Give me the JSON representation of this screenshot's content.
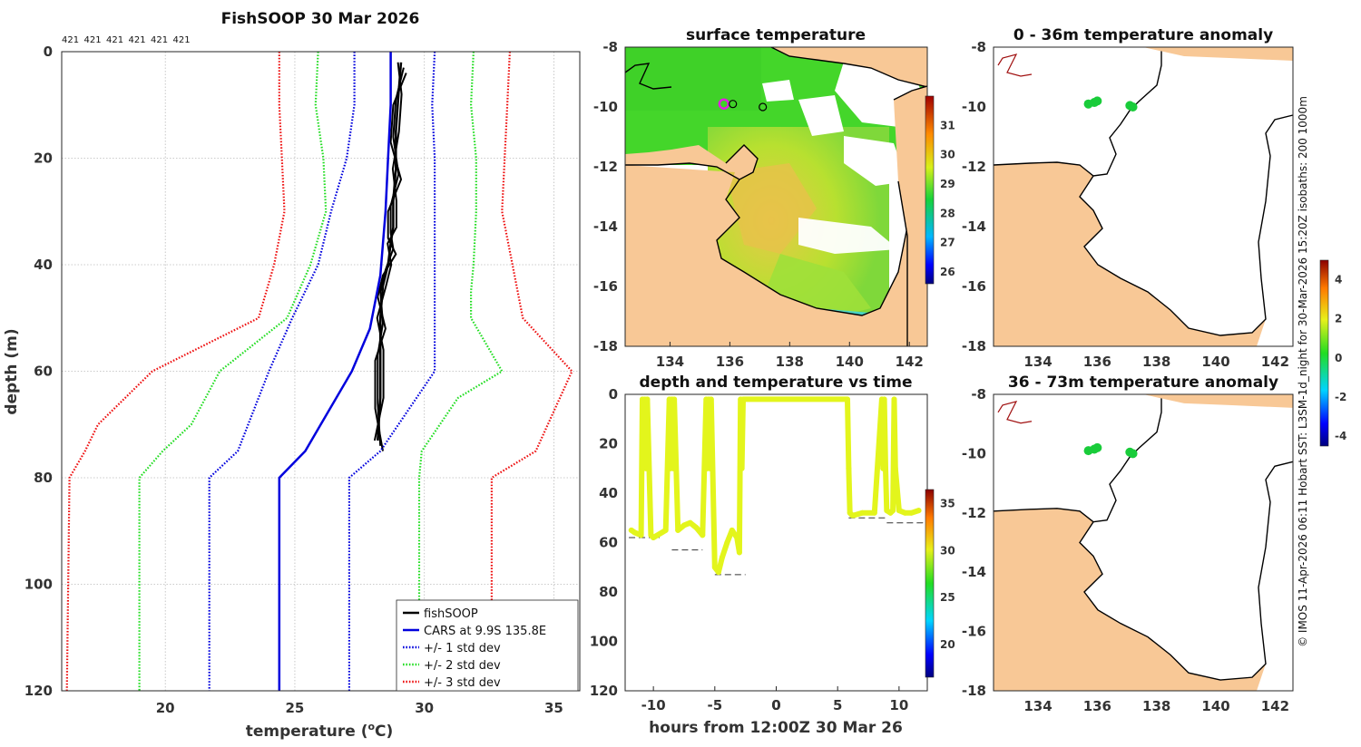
{
  "chart_data": [
    {
      "type": "line",
      "title": "FishSOOP 30 Mar 2026",
      "xlabel": "temperature (°C)",
      "ylabel": "depth (m)",
      "xlim": [
        16,
        36
      ],
      "ylim": [
        120,
        0
      ],
      "xticks": [
        "20",
        "25",
        "30",
        "35"
      ],
      "yticks": [
        "0",
        "20",
        "40",
        "60",
        "80",
        "100",
        "120"
      ],
      "top_labels": [
        "421",
        "421",
        "421",
        "421",
        "421",
        "421"
      ],
      "series": [
        {
          "name": "fishSOOP",
          "color": "#000000",
          "style": "solid",
          "x": [
            29.1,
            29.0,
            28.9,
            28.9,
            28.8,
            28.8,
            28.7,
            28.6,
            28.4,
            28.3,
            28.3,
            28.3,
            28.2
          ],
          "y": [
            2,
            8,
            15,
            22,
            28,
            33,
            36,
            40,
            44,
            50,
            56,
            65,
            73
          ]
        },
        {
          "name": "CARS at 9.9S 135.8E",
          "color": "#0000dd",
          "style": "solid",
          "x": [
            28.7,
            28.7,
            28.6,
            28.5,
            28.3,
            27.9,
            27.2,
            26.0,
            25.4,
            24.4,
            24.4
          ],
          "y": [
            0,
            10,
            20,
            30,
            42,
            52,
            60,
            70,
            75,
            80,
            120
          ]
        },
        {
          "name": "+/- 1 std dev",
          "color": "#0000dd",
          "style": "dotted",
          "x": [
            27.3,
            27.3,
            27.0,
            26.4,
            25.9,
            24.9,
            24.0,
            22.8,
            21.7,
            21.7
          ],
          "y": [
            0,
            10,
            20,
            30,
            40,
            50,
            60,
            75,
            80,
            120
          ]
        },
        {
          "name": "+/- 1 std dev (upper)",
          "color": "#0000dd",
          "style": "dotted",
          "x": [
            30.4,
            30.3,
            30.4,
            30.4,
            30.4,
            30.4,
            30.4,
            30.4,
            29.7,
            28.3,
            27.1,
            27.1
          ],
          "y": [
            0,
            10,
            20,
            30,
            40,
            45,
            50,
            60,
            65,
            75,
            80,
            120
          ]
        },
        {
          "name": "+/- 2 std dev",
          "color": "#22dd22",
          "style": "dotted",
          "x": [
            25.9,
            25.8,
            26.1,
            26.2,
            25.6,
            24.7,
            22.1,
            21.0,
            19.9,
            19.0,
            19.0
          ],
          "y": [
            0,
            10,
            20,
            30,
            40,
            50,
            60,
            70,
            75,
            80,
            120
          ]
        },
        {
          "name": "+/- 2 std dev (upper)",
          "color": "#22dd22",
          "style": "dotted",
          "x": [
            31.9,
            31.8,
            32.0,
            32.0,
            31.9,
            31.8,
            31.8,
            33.0,
            31.3,
            29.9,
            29.8,
            29.8
          ],
          "y": [
            0,
            10,
            20,
            30,
            40,
            45,
            50,
            60,
            65,
            75,
            80,
            120
          ]
        },
        {
          "name": "+/- 3 std dev",
          "color": "#ee1111",
          "style": "dotted",
          "x": [
            24.4,
            24.4,
            24.5,
            24.6,
            24.2,
            23.6,
            19.5,
            17.4,
            16.9,
            16.3,
            16.2
          ],
          "y": [
            0,
            10,
            20,
            30,
            40,
            50,
            60,
            70,
            75,
            80,
            120
          ]
        },
        {
          "name": "+/- 3 std dev (upper)",
          "color": "#ee1111",
          "style": "dotted",
          "x": [
            33.3,
            33.2,
            33.1,
            33.0,
            33.4,
            33.8,
            35.7,
            34.3,
            32.6,
            32.6
          ],
          "y": [
            0,
            10,
            20,
            30,
            40,
            50,
            60,
            75,
            80,
            120
          ]
        }
      ],
      "legend": [
        "fishSOOP",
        "CARS at 9.9S 135.8E",
        "+/- 1 std dev",
        "+/- 2 std dev",
        "+/- 3 std dev"
      ],
      "legend_position": "bottom-right"
    },
    {
      "type": "heatmap",
      "title": "surface temperature",
      "xticks": [
        "134",
        "136",
        "138",
        "140",
        "142"
      ],
      "yticks": [
        "-8",
        "-10",
        "-12",
        "-14",
        "-16",
        "-18"
      ],
      "xlim": [
        132.5,
        142.6
      ],
      "ylim": [
        -18,
        -8
      ],
      "colorbar_ticks": [
        "26",
        "27",
        "28",
        "29",
        "30",
        "31"
      ],
      "colorbar_range": [
        25.6,
        32
      ],
      "markers": [
        {
          "lon": 135.8,
          "lat": -9.9,
          "color": "#e01fe0"
        },
        {
          "lon": 136.1,
          "lat": -9.9,
          "color": "#000000"
        },
        {
          "lon": 137.1,
          "lat": -10.0,
          "color": "#000000"
        }
      ]
    },
    {
      "type": "scatter",
      "title": "depth and temperature vs time",
      "xlabel": "hours from 12:00Z 30 Mar 26",
      "xticks": [
        "-10",
        "-5",
        "0",
        "5",
        "10"
      ],
      "yticks": [
        "0",
        "20",
        "40",
        "60",
        "80",
        "100",
        "120"
      ],
      "xlim": [
        -12.3,
        12.3
      ],
      "ylim": [
        120,
        0
      ],
      "colorbar_ticks": [
        "20",
        "25",
        "30",
        "35"
      ],
      "colorbar_range": [
        16.5,
        36.5
      ],
      "point_color": "#e3f51c",
      "t": [
        -11.8,
        -11.5,
        -11.0,
        -10.9,
        -10.8,
        -10.7,
        -10.6,
        -10.5,
        -10.2,
        -10.0,
        -9.0,
        -8.7,
        -8.6,
        -8.5,
        -8.4,
        -8.3,
        -8.0,
        -7.5,
        -7.0,
        -6.5,
        -6.0,
        -5.7,
        -5.6,
        -5.5,
        -5.4,
        -5.3,
        -5.0,
        -4.7,
        -4.4,
        -4.0,
        -3.6,
        -3.2,
        -3.0,
        -2.9,
        -2.8,
        -2.7,
        5.8,
        5.9,
        6.0,
        6.2,
        6.3,
        7.0,
        8.0,
        8.6,
        8.7,
        8.8,
        8.9,
        9.0,
        9.3,
        9.5,
        9.6,
        9.7,
        10.0,
        10.5,
        11.0,
        11.6
      ],
      "depth": [
        55,
        56,
        57,
        2,
        30,
        2,
        30,
        2,
        57,
        58,
        55,
        2,
        30,
        2,
        30,
        2,
        55,
        53,
        52,
        54,
        57,
        2,
        30,
        2,
        30,
        2,
        70,
        72,
        66,
        60,
        55,
        58,
        64,
        2,
        30,
        2,
        2,
        30,
        48,
        49,
        49,
        48,
        48,
        2,
        30,
        2,
        30,
        47,
        48,
        47,
        2,
        30,
        47,
        48,
        48,
        47
      ],
      "bottom_depth": [
        {
          "t0": -12,
          "t1": -9.5,
          "d": 58
        },
        {
          "t0": -8.5,
          "t1": -6,
          "d": 63
        },
        {
          "t0": -5.0,
          "t1": -2.5,
          "d": 73
        },
        {
          "t0": 5.9,
          "t1": 9.0,
          "d": 50
        },
        {
          "t0": 9.0,
          "t1": 12.2,
          "d": 52
        }
      ]
    },
    {
      "type": "scatter",
      "title": "0 - 36m temperature anomaly",
      "xticks": [
        "134",
        "136",
        "138",
        "140",
        "142"
      ],
      "yticks": [
        "-8",
        "-10",
        "-12",
        "-14",
        "-16",
        "-18"
      ],
      "points": [
        {
          "lon": 135.7,
          "lat": -9.9
        },
        {
          "lon": 135.9,
          "lat": -9.85
        },
        {
          "lon": 136.0,
          "lat": -9.8
        },
        {
          "lon": 137.1,
          "lat": -9.95
        },
        {
          "lon": 137.2,
          "lat": -10.0
        }
      ],
      "point_color": "#19cc3a"
    },
    {
      "type": "scatter",
      "title": "36 - 73m temperature anomaly",
      "xticks": [
        "134",
        "136",
        "138",
        "140",
        "142"
      ],
      "yticks": [
        "-8",
        "-10",
        "-12",
        "-14",
        "-16",
        "-18"
      ],
      "points": [
        {
          "lon": 135.7,
          "lat": -9.9
        },
        {
          "lon": 135.9,
          "lat": -9.85
        },
        {
          "lon": 136.0,
          "lat": -9.8
        },
        {
          "lon": 137.1,
          "lat": -9.95
        },
        {
          "lon": 137.2,
          "lat": -10.0
        }
      ],
      "point_color": "#19cc3a",
      "colorbar_ticks": [
        "-4",
        "-2",
        "0",
        "2",
        "4"
      ],
      "colorbar_range": [
        -4.5,
        5
      ]
    }
  ],
  "side_caption": "© IMOS 11-Apr-2026 06:11 Hobart SST: L3SM-1d_night for 30-Mar-2026 15:20Z isobaths: 200  1000m"
}
